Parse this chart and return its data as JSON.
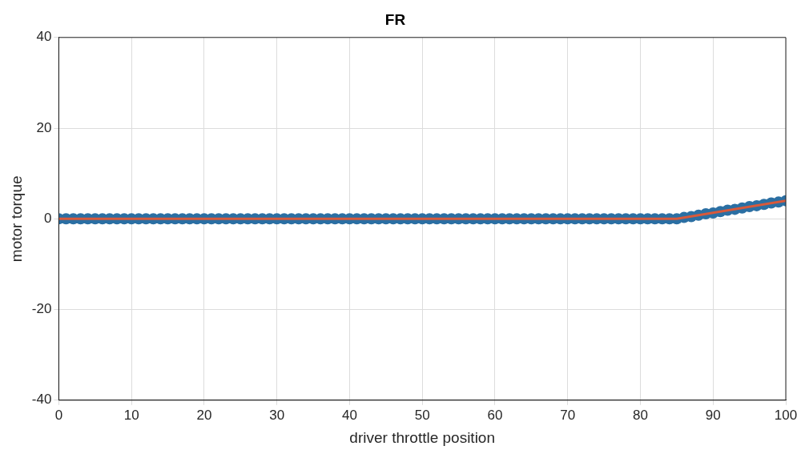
{
  "chart_data": {
    "type": "scatter",
    "title": "FR",
    "xlabel": "driver throttle position",
    "ylabel": "motor torque",
    "xlim": [
      0,
      100
    ],
    "xticks": [
      0,
      10,
      20,
      30,
      40,
      50,
      60,
      70,
      80,
      90,
      100
    ],
    "ylim": [
      -40,
      40
    ],
    "yticks": [
      -40,
      -20,
      0,
      20,
      40
    ],
    "grid": true,
    "legend": false,
    "marker": "circle",
    "series": [
      {
        "color": "#2b6fa3",
        "x": [
          0,
          1,
          2,
          3,
          4,
          5,
          6,
          7,
          8,
          9,
          10,
          11,
          12,
          13,
          14,
          15,
          16,
          17,
          18,
          19,
          20,
          21,
          22,
          23,
          24,
          25,
          26,
          27,
          28,
          29,
          30,
          31,
          32,
          33,
          34,
          35,
          36,
          37,
          38,
          39,
          40,
          41,
          42,
          43,
          44,
          45,
          46,
          47,
          48,
          49,
          50,
          51,
          52,
          53,
          54,
          55,
          56,
          57,
          58,
          59,
          60,
          61,
          62,
          63,
          64,
          65,
          66,
          67,
          68,
          69,
          70,
          71,
          72,
          73,
          74,
          75,
          76,
          77,
          78,
          79,
          80,
          81,
          82,
          83,
          84,
          85,
          86,
          87,
          88,
          89,
          90,
          91,
          92,
          93,
          94,
          95,
          96,
          97,
          98,
          99,
          100
        ],
        "values": [
          0,
          0,
          0,
          0,
          0,
          0,
          0,
          0,
          0,
          0,
          0,
          0,
          0,
          0,
          0,
          0,
          0,
          0,
          0,
          0,
          0,
          0,
          0,
          0,
          0,
          0,
          0,
          0,
          0,
          0,
          0,
          0,
          0,
          0,
          0,
          0,
          0,
          0,
          0,
          0,
          0,
          0,
          0,
          0,
          0,
          0,
          0,
          0,
          0,
          0,
          0,
          0,
          0,
          0,
          0,
          0,
          0,
          0,
          0,
          0,
          0,
          0,
          0,
          0,
          0,
          0,
          0,
          0,
          0,
          0,
          0,
          0,
          0,
          0,
          0,
          0,
          0,
          0,
          0,
          0,
          0,
          0,
          0,
          0,
          0,
          0,
          0.3,
          0.5,
          0.8,
          1.1,
          1.3,
          1.6,
          1.9,
          2.1,
          2.4,
          2.7,
          2.9,
          3.2,
          3.5,
          3.7,
          4
        ]
      },
      {
        "type": "line",
        "color": "#d9593a",
        "marker": "none",
        "line_style": "solid",
        "x": [
          0,
          85,
          100
        ],
        "values": [
          0,
          0,
          4
        ]
      }
    ]
  }
}
